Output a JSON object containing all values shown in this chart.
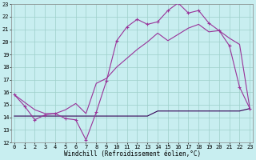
{
  "xlabel": "Windchill (Refroidissement éolien,°C)",
  "background_color": "#c8eef0",
  "grid_color": "#9ecfca",
  "line1_color": "#993399",
  "line2_color": "#993399",
  "line3_color": "#330055",
  "xmin": 0,
  "xmax": 23,
  "ymin": 12,
  "ymax": 23,
  "line1_x": [
    0,
    1,
    2,
    3,
    4,
    5,
    6,
    7,
    8,
    9,
    10,
    11,
    12,
    13,
    14,
    15,
    16,
    17,
    18,
    19,
    20,
    21,
    22,
    23
  ],
  "line1_y": [
    15.8,
    14.9,
    13.8,
    14.2,
    14.3,
    13.9,
    13.8,
    12.2,
    14.4,
    16.9,
    20.1,
    21.2,
    21.8,
    21.4,
    21.6,
    22.5,
    23.1,
    22.3,
    22.5,
    21.5,
    20.9,
    19.7,
    16.4,
    14.7
  ],
  "line2_x": [
    0,
    1,
    2,
    3,
    4,
    5,
    6,
    7,
    8,
    9,
    10,
    11,
    12,
    13,
    14,
    15,
    16,
    17,
    18,
    19,
    20,
    21,
    22,
    23
  ],
  "line2_y": [
    15.8,
    15.2,
    14.6,
    14.3,
    14.3,
    14.6,
    15.1,
    14.3,
    16.7,
    17.1,
    18.0,
    18.7,
    19.4,
    20.0,
    20.7,
    20.1,
    20.6,
    21.1,
    21.4,
    20.8,
    20.9,
    20.3,
    19.8,
    14.7
  ],
  "line3_x": [
    0,
    1,
    2,
    3,
    4,
    5,
    6,
    7,
    8,
    9,
    10,
    11,
    12,
    13,
    14,
    15,
    16,
    17,
    18,
    19,
    20,
    21,
    22,
    23
  ],
  "line3_y": [
    14.1,
    14.1,
    14.1,
    14.1,
    14.1,
    14.1,
    14.1,
    14.1,
    14.1,
    14.1,
    14.1,
    14.1,
    14.1,
    14.1,
    14.5,
    14.5,
    14.5,
    14.5,
    14.5,
    14.5,
    14.5,
    14.5,
    14.5,
    14.7
  ],
  "yticks": [
    12,
    13,
    14,
    15,
    16,
    17,
    18,
    19,
    20,
    21,
    22,
    23
  ],
  "xticks": [
    0,
    1,
    2,
    3,
    4,
    5,
    6,
    7,
    8,
    9,
    10,
    11,
    12,
    13,
    14,
    15,
    16,
    17,
    18,
    19,
    20,
    21,
    22,
    23
  ]
}
